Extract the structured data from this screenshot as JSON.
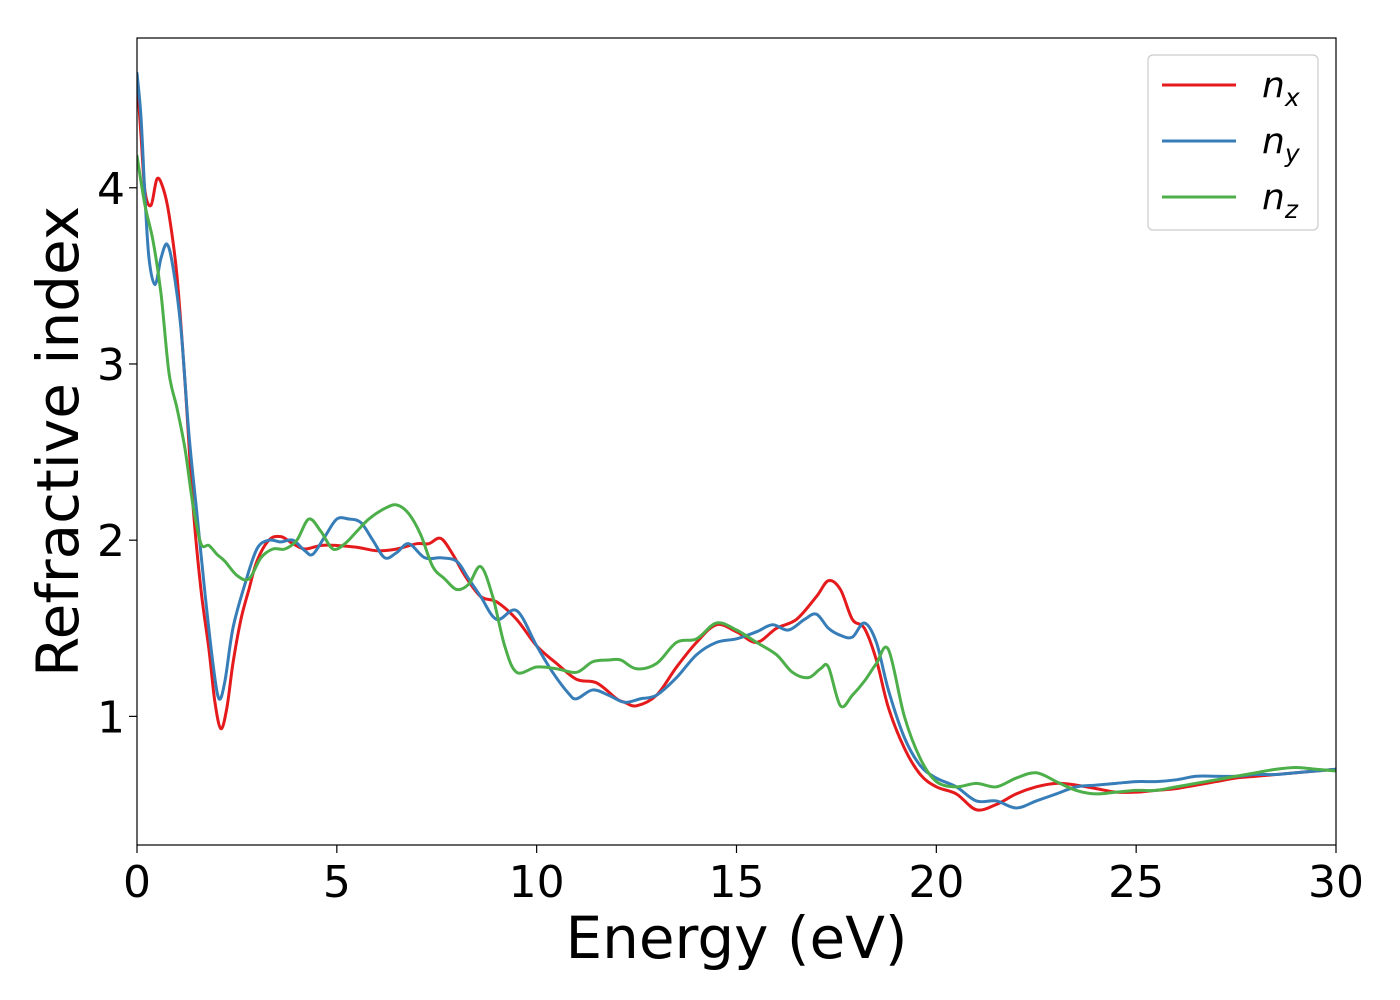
{
  "chart_data": {
    "type": "line",
    "xlabel": "Energy (eV)",
    "ylabel": "Refractive index",
    "xlim": [
      0,
      30
    ],
    "ylim": [
      0.27,
      4.85
    ],
    "xticks": [
      0,
      5,
      10,
      15,
      20,
      25,
      30
    ],
    "yticks": [
      1,
      2,
      3,
      4
    ],
    "grid": false,
    "legend_position": "top-right",
    "series": [
      {
        "name": "n",
        "subscript": "x",
        "color": "#e41a1c",
        "x": [
          0,
          0.1,
          0.2,
          0.35,
          0.5,
          0.65,
          0.8,
          1.0,
          1.2,
          1.4,
          1.6,
          1.8,
          1.95,
          2.1,
          2.25,
          2.4,
          2.6,
          2.8,
          3.0,
          3.3,
          3.6,
          3.9,
          4.2,
          4.6,
          5.0,
          5.5,
          6.0,
          6.5,
          7.0,
          7.3,
          7.6,
          7.9,
          8.2,
          8.6,
          9.0,
          9.5,
          10.0,
          10.5,
          11.0,
          11.5,
          12.0,
          12.2,
          12.5,
          13.0,
          13.5,
          14.0,
          14.5,
          15.0,
          15.5,
          16.0,
          16.5,
          17.0,
          17.3,
          17.6,
          17.9,
          18.2,
          18.5,
          18.8,
          19.2,
          19.6,
          20.0,
          20.5,
          21.0,
          21.5,
          22.0,
          22.5,
          23.0,
          23.5,
          24.0,
          24.5,
          25.0,
          25.5,
          26.0,
          26.5,
          27.0,
          27.5,
          28.0,
          28.5,
          29.0,
          29.5,
          30.0
        ],
        "y": [
          4.62,
          4.3,
          3.98,
          3.9,
          4.05,
          4.0,
          3.85,
          3.5,
          2.9,
          2.2,
          1.72,
          1.38,
          1.08,
          0.93,
          1.05,
          1.3,
          1.55,
          1.72,
          1.88,
          2.0,
          2.02,
          1.98,
          1.95,
          1.97,
          1.97,
          1.96,
          1.94,
          1.95,
          1.98,
          1.98,
          2.01,
          1.92,
          1.8,
          1.68,
          1.65,
          1.55,
          1.4,
          1.3,
          1.21,
          1.19,
          1.1,
          1.08,
          1.06,
          1.12,
          1.28,
          1.42,
          1.52,
          1.48,
          1.42,
          1.5,
          1.55,
          1.68,
          1.77,
          1.72,
          1.55,
          1.5,
          1.32,
          1.05,
          0.82,
          0.67,
          0.6,
          0.56,
          0.47,
          0.5,
          0.56,
          0.6,
          0.62,
          0.61,
          0.59,
          0.57,
          0.57,
          0.58,
          0.59,
          0.61,
          0.63,
          0.65,
          0.66,
          0.67,
          0.68,
          0.69,
          0.7
        ]
      },
      {
        "name": "n",
        "subscript": "y",
        "color": "#377eb8",
        "x": [
          0,
          0.1,
          0.2,
          0.3,
          0.45,
          0.6,
          0.75,
          0.9,
          1.1,
          1.3,
          1.5,
          1.7,
          1.9,
          2.05,
          2.2,
          2.4,
          2.7,
          3.0,
          3.3,
          3.6,
          3.9,
          4.2,
          4.4,
          4.7,
          5.0,
          5.3,
          5.6,
          5.9,
          6.2,
          6.5,
          6.8,
          7.2,
          7.6,
          8.0,
          8.3,
          8.6,
          9.0,
          9.5,
          10.0,
          10.4,
          10.8,
          11.0,
          11.4,
          11.8,
          12.2,
          12.6,
          13.0,
          13.5,
          14.0,
          14.5,
          15.0,
          15.5,
          15.9,
          16.3,
          16.7,
          17.0,
          17.3,
          17.6,
          17.9,
          18.2,
          18.5,
          18.8,
          19.2,
          19.6,
          20.0,
          20.5,
          21.0,
          21.5,
          22.0,
          22.5,
          23.0,
          23.5,
          24.0,
          24.5,
          25.0,
          25.5,
          26.0,
          26.5,
          27.0,
          27.5,
          28.0,
          28.5,
          29.0,
          29.5,
          30.0
        ],
        "y": [
          4.65,
          4.4,
          3.95,
          3.6,
          3.45,
          3.6,
          3.68,
          3.55,
          3.2,
          2.6,
          2.15,
          1.7,
          1.3,
          1.1,
          1.2,
          1.5,
          1.75,
          1.95,
          2.0,
          1.99,
          2.0,
          1.94,
          1.92,
          2.02,
          2.12,
          2.12,
          2.1,
          2.0,
          1.9,
          1.93,
          1.98,
          1.9,
          1.9,
          1.88,
          1.78,
          1.68,
          1.55,
          1.6,
          1.4,
          1.25,
          1.13,
          1.1,
          1.15,
          1.12,
          1.08,
          1.1,
          1.12,
          1.22,
          1.35,
          1.42,
          1.44,
          1.48,
          1.52,
          1.49,
          1.55,
          1.58,
          1.5,
          1.46,
          1.45,
          1.53,
          1.42,
          1.15,
          0.88,
          0.72,
          0.65,
          0.6,
          0.52,
          0.52,
          0.48,
          0.52,
          0.56,
          0.6,
          0.61,
          0.62,
          0.63,
          0.63,
          0.64,
          0.66,
          0.66,
          0.66,
          0.67,
          0.67,
          0.68,
          0.69,
          0.7
        ]
      },
      {
        "name": "n",
        "subscript": "z",
        "color": "#4daf4a",
        "x": [
          0,
          0.2,
          0.4,
          0.6,
          0.8,
          1.0,
          1.2,
          1.4,
          1.6,
          1.8,
          2.0,
          2.2,
          2.5,
          2.8,
          3.1,
          3.4,
          3.7,
          4.0,
          4.3,
          4.6,
          4.9,
          5.2,
          5.5,
          5.8,
          6.2,
          6.5,
          6.8,
          7.1,
          7.4,
          7.7,
          8.0,
          8.3,
          8.6,
          8.9,
          9.2,
          9.5,
          10.0,
          10.5,
          11.0,
          11.4,
          11.8,
          12.1,
          12.5,
          13.0,
          13.5,
          14.0,
          14.5,
          15.0,
          15.5,
          16.0,
          16.4,
          16.8,
          17.1,
          17.3,
          17.6,
          17.9,
          18.2,
          18.5,
          18.8,
          19.2,
          19.6,
          20.0,
          20.5,
          21.0,
          21.5,
          22.0,
          22.5,
          23.0,
          23.5,
          24.0,
          24.5,
          25.0,
          25.5,
          26.0,
          26.5,
          27.0,
          27.5,
          28.0,
          28.5,
          29.0,
          29.5,
          30.0
        ],
        "y": [
          4.18,
          3.9,
          3.7,
          3.4,
          2.95,
          2.75,
          2.52,
          2.2,
          1.98,
          1.97,
          1.92,
          1.88,
          1.8,
          1.78,
          1.9,
          1.95,
          1.95,
          2.0,
          2.12,
          2.05,
          1.95,
          1.98,
          2.05,
          2.12,
          2.18,
          2.2,
          2.15,
          2.03,
          1.85,
          1.78,
          1.72,
          1.75,
          1.85,
          1.68,
          1.4,
          1.25,
          1.28,
          1.27,
          1.25,
          1.31,
          1.32,
          1.32,
          1.27,
          1.3,
          1.42,
          1.44,
          1.53,
          1.49,
          1.42,
          1.35,
          1.25,
          1.22,
          1.27,
          1.28,
          1.06,
          1.12,
          1.2,
          1.3,
          1.38,
          1.0,
          0.76,
          0.63,
          0.6,
          0.62,
          0.6,
          0.65,
          0.68,
          0.63,
          0.58,
          0.56,
          0.57,
          0.58,
          0.58,
          0.6,
          0.62,
          0.64,
          0.66,
          0.68,
          0.7,
          0.71,
          0.7,
          0.69
        ]
      }
    ]
  }
}
